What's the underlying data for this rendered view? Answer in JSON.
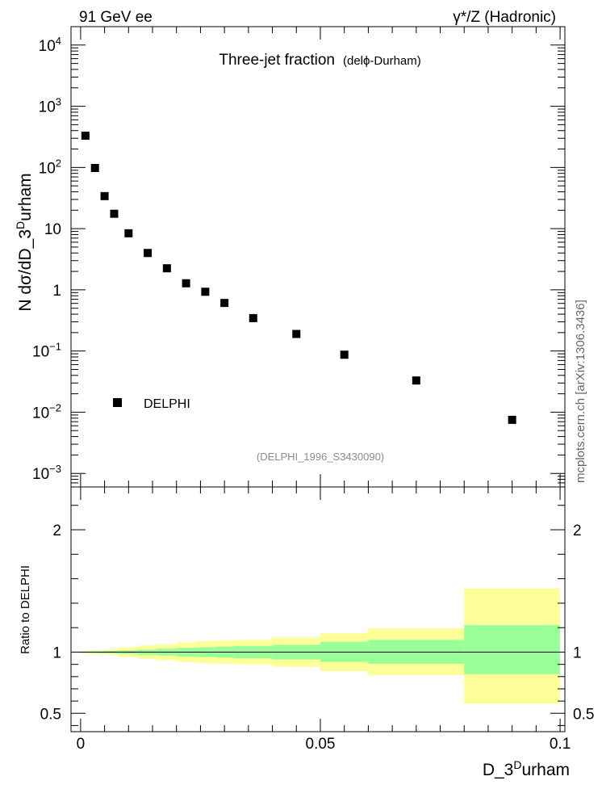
{
  "header": {
    "left": "91 GeV ee",
    "right": "γ*/Z (Hadronic)"
  },
  "side_label": "mcplots.cern.ch [arXiv:1306.3436]",
  "chart_data": [
    {
      "type": "scatter",
      "title": "Three-jet fraction",
      "subtitle": "(delϕ-Durham)",
      "ylabel": "N dσ/dD_3^Durham",
      "ylabel_parts": {
        "main": "N dσ/dD_3",
        "sup": "D",
        "tail": "urham"
      },
      "yscale": "log",
      "ylim": [
        0.0006,
        20000
      ],
      "xlim": [
        -0.002,
        0.101
      ],
      "ytick_labels": [
        {
          "value": 0.001,
          "base": "10",
          "exp": "−3"
        },
        {
          "value": 0.01,
          "base": "10",
          "exp": "−2"
        },
        {
          "value": 0.1,
          "base": "10",
          "exp": "−1"
        },
        {
          "value": 1,
          "base": "1",
          "exp": ""
        },
        {
          "value": 10,
          "base": "10",
          "exp": ""
        },
        {
          "value": 100,
          "base": "10",
          "exp": "2"
        },
        {
          "value": 1000,
          "base": "10",
          "exp": "3"
        },
        {
          "value": 10000,
          "base": "10",
          "exp": "4"
        }
      ],
      "series": [
        {
          "name": "DELPHI",
          "x": [
            0.001,
            0.003,
            0.005,
            0.007,
            0.01,
            0.014,
            0.018,
            0.022,
            0.026,
            0.03,
            0.036,
            0.045,
            0.055,
            0.07,
            0.09
          ],
          "y": [
            330,
            98,
            34,
            17.5,
            8.4,
            4.0,
            2.25,
            1.28,
            0.93,
            0.61,
            0.345,
            0.19,
            0.087,
            0.033,
            0.0075
          ]
        }
      ],
      "legend": "left",
      "annotation": "(DELPHI_1996_S3430090)"
    },
    {
      "type": "area",
      "ylabel": "Ratio to DELPHI",
      "ylim": [
        0.35,
        2.35
      ],
      "xlim": [
        -0.002,
        0.101
      ],
      "ytick_labels": [
        "0.5",
        "1",
        "2"
      ],
      "ytick_values": [
        0.5,
        1,
        2
      ],
      "xtick_labels": [
        "0",
        "0.05",
        "0.1"
      ],
      "xtick_values": [
        0,
        0.05,
        0.1
      ],
      "xlabel": "D_3^Durham",
      "xlabel_parts": {
        "main": "D_3",
        "sup": "D",
        "tail": "urham"
      },
      "bands": {
        "edges": [
          0,
          0.002,
          0.004,
          0.006,
          0.008,
          0.012,
          0.016,
          0.02,
          0.024,
          0.028,
          0.032,
          0.04,
          0.05,
          0.06,
          0.08,
          0.1
        ],
        "inner_lo": [
          0.995,
          0.994,
          0.992,
          0.99,
          0.985,
          0.978,
          0.972,
          0.965,
          0.96,
          0.955,
          0.95,
          0.94,
          0.92,
          0.905,
          0.82
        ],
        "inner_hi": [
          1.005,
          1.006,
          1.008,
          1.01,
          1.015,
          1.022,
          1.028,
          1.035,
          1.04,
          1.045,
          1.05,
          1.06,
          1.085,
          1.1,
          1.22
        ],
        "outer_lo": [
          0.99,
          0.985,
          0.98,
          0.975,
          0.96,
          0.945,
          0.935,
          0.92,
          0.91,
          0.905,
          0.9,
          0.88,
          0.845,
          0.81,
          0.58
        ],
        "outer_hi": [
          1.01,
          1.015,
          1.02,
          1.025,
          1.04,
          1.055,
          1.065,
          1.08,
          1.09,
          1.095,
          1.1,
          1.12,
          1.155,
          1.195,
          1.52
        ],
        "colors": {
          "inner": "#99ff99",
          "outer": "#ffff99",
          "line": "#000000"
        }
      }
    }
  ]
}
